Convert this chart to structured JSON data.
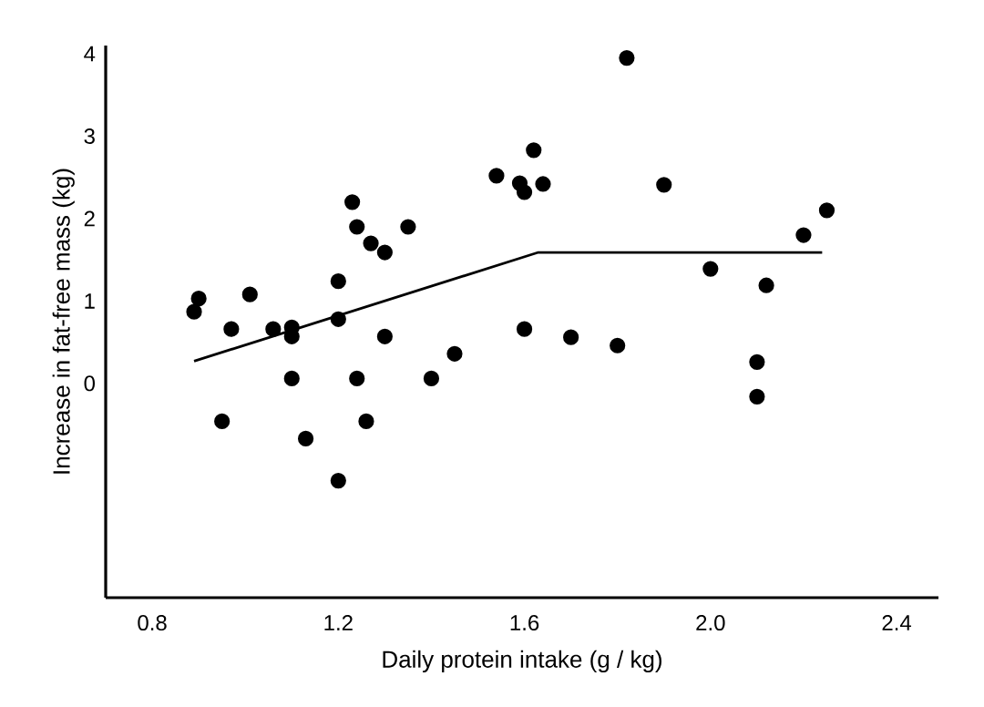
{
  "chart_data": {
    "type": "scatter",
    "xlabel": "Daily protein intake (g / kg)",
    "ylabel": "Increase in fat-free mass (kg)",
    "xlim": [
      0.7,
      2.49
    ],
    "ylim": [
      -2.6,
      4.1
    ],
    "xticks": [
      {
        "value": 0.8,
        "label": "0.8"
      },
      {
        "value": 1.2,
        "label": "1.2"
      },
      {
        "value": 1.6,
        "label": "1.6"
      },
      {
        "value": 2.0,
        "label": "2.0"
      },
      {
        "value": 2.4,
        "label": "2.4"
      }
    ],
    "yticks": [
      {
        "value": 0,
        "label": "0"
      },
      {
        "value": 1,
        "label": "1"
      },
      {
        "value": 2,
        "label": "2"
      },
      {
        "value": 3,
        "label": "3"
      },
      {
        "value": 4,
        "label": "4"
      }
    ],
    "grid": false,
    "series": [
      {
        "marker": "circle",
        "color": "#000000",
        "x": [
          0.89,
          0.9,
          0.95,
          0.97,
          1.01,
          1.06,
          1.1,
          1.1,
          1.1,
          1.13,
          1.2,
          1.2,
          1.2,
          1.23,
          1.24,
          1.24,
          1.26,
          1.27,
          1.3,
          1.3,
          1.35,
          1.4,
          1.45,
          1.54,
          1.59,
          1.6,
          1.62,
          1.6,
          1.64,
          1.82,
          1.7,
          1.8,
          1.9,
          2.0,
          2.12,
          2.1,
          2.1,
          2.2,
          2.25
        ],
        "values": [
          0.87,
          1.03,
          -0.46,
          0.66,
          1.08,
          0.66,
          0.68,
          0.57,
          0.06,
          -0.67,
          1.24,
          0.78,
          -1.18,
          2.2,
          1.9,
          0.06,
          -0.46,
          1.7,
          1.59,
          0.57,
          1.9,
          0.06,
          0.36,
          2.52,
          2.43,
          2.32,
          2.83,
          0.66,
          2.42,
          3.95,
          0.56,
          0.46,
          2.41,
          1.39,
          1.19,
          0.26,
          -0.16,
          1.8,
          2.1
        ]
      },
      {
        "type": "line",
        "marker": "none",
        "line_style": "solid",
        "color": "#000000",
        "x": [
          0.89,
          1.63,
          2.24
        ],
        "values": [
          0.27,
          1.59,
          1.59
        ]
      }
    ]
  }
}
